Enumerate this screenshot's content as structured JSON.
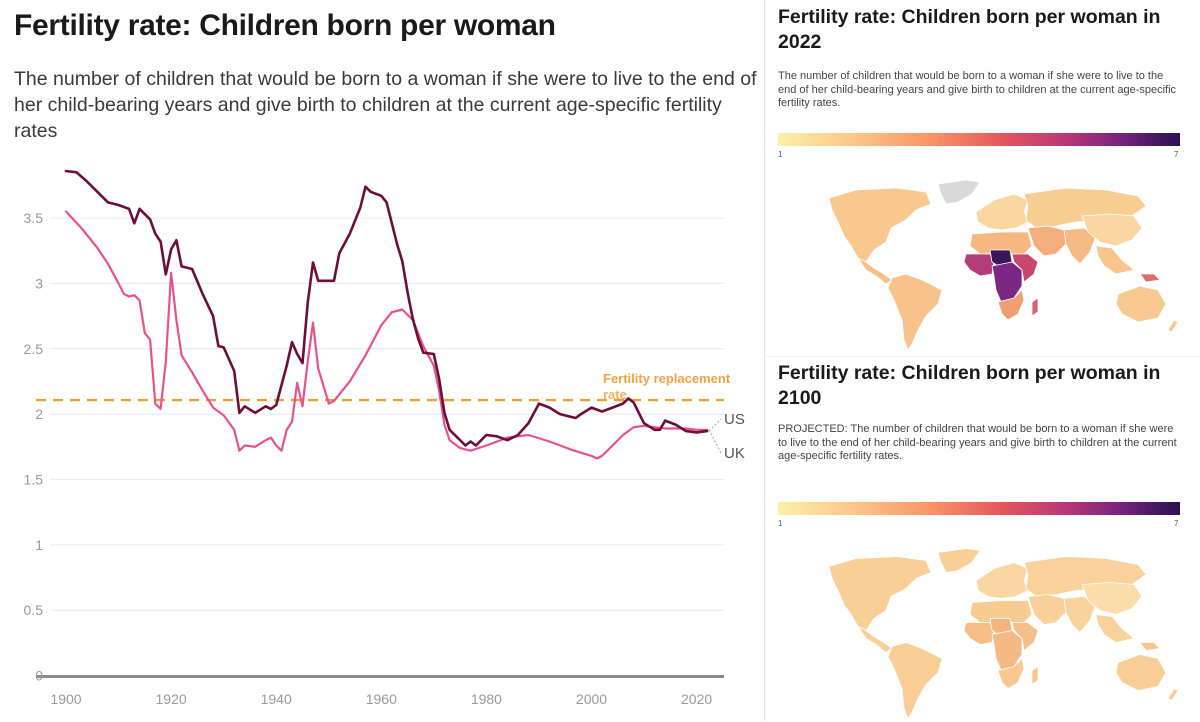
{
  "left_panel": {
    "title": "Fertility rate: Children born per woman",
    "subtitle": "The number of children that would be born to a woman if she were to live to the end of her child-bearing years and give birth to children at the current age-specific fertility rates"
  },
  "chart_data": {
    "type": "line",
    "title": "Fertility rate: Children born per woman",
    "subtitle": "The number of children that would be born to a woman if she were to live to the end of her child-bearing years and give birth to children at the current age-specific fertility rates",
    "xlabel": "",
    "ylabel": "",
    "xlim": [
      1900,
      2022
    ],
    "ylim": [
      0,
      3.9
    ],
    "x_ticks": [
      1900,
      1920,
      1940,
      1960,
      1980,
      2000,
      2020
    ],
    "y_ticks": [
      0,
      0.5,
      1,
      1.5,
      2,
      2.5,
      3,
      3.5
    ],
    "y_tick_labels": [
      "0",
      "0.5",
      "1",
      "1.5",
      "2",
      "2.5",
      "3",
      "3.5"
    ],
    "x_tick_labels": [
      "1900",
      "1920",
      "1940",
      "1960",
      "1980",
      "2000",
      "2020"
    ],
    "grid": true,
    "legend": "end-of-line labels",
    "series": [
      {
        "name": "US",
        "color": "#6b0f3a",
        "points": [
          [
            1900,
            3.86
          ],
          [
            1902,
            3.85
          ],
          [
            1904,
            3.78
          ],
          [
            1906,
            3.7
          ],
          [
            1908,
            3.62
          ],
          [
            1910,
            3.6
          ],
          [
            1912,
            3.57
          ],
          [
            1913,
            3.46
          ],
          [
            1914,
            3.57
          ],
          [
            1916,
            3.49
          ],
          [
            1917,
            3.38
          ],
          [
            1918,
            3.32
          ],
          [
            1919,
            3.07
          ],
          [
            1920,
            3.26
          ],
          [
            1921,
            3.33
          ],
          [
            1922,
            3.13
          ],
          [
            1924,
            3.11
          ],
          [
            1926,
            2.92
          ],
          [
            1928,
            2.75
          ],
          [
            1929,
            2.52
          ],
          [
            1930,
            2.51
          ],
          [
            1932,
            2.33
          ],
          [
            1933,
            2.01
          ],
          [
            1934,
            2.06
          ],
          [
            1936,
            2.01
          ],
          [
            1938,
            2.06
          ],
          [
            1939,
            2.04
          ],
          [
            1940,
            2.07
          ],
          [
            1942,
            2.37
          ],
          [
            1943,
            2.55
          ],
          [
            1944,
            2.46
          ],
          [
            1945,
            2.39
          ],
          [
            1946,
            2.85
          ],
          [
            1947,
            3.16
          ],
          [
            1948,
            3.02
          ],
          [
            1950,
            3.02
          ],
          [
            1951,
            3.02
          ],
          [
            1952,
            3.23
          ],
          [
            1954,
            3.38
          ],
          [
            1956,
            3.58
          ],
          [
            1957,
            3.74
          ],
          [
            1958,
            3.7
          ],
          [
            1960,
            3.67
          ],
          [
            1961,
            3.62
          ],
          [
            1963,
            3.3
          ],
          [
            1964,
            3.17
          ],
          [
            1965,
            2.93
          ],
          [
            1966,
            2.73
          ],
          [
            1967,
            2.58
          ],
          [
            1968,
            2.47
          ],
          [
            1970,
            2.46
          ],
          [
            1971,
            2.27
          ],
          [
            1972,
            2.01
          ],
          [
            1973,
            1.88
          ],
          [
            1975,
            1.8
          ],
          [
            1976,
            1.76
          ],
          [
            1977,
            1.79
          ],
          [
            1978,
            1.76
          ],
          [
            1980,
            1.84
          ],
          [
            1982,
            1.83
          ],
          [
            1984,
            1.8
          ],
          [
            1986,
            1.84
          ],
          [
            1988,
            1.93
          ],
          [
            1990,
            2.08
          ],
          [
            1992,
            2.05
          ],
          [
            1994,
            2.0
          ],
          [
            1996,
            1.98
          ],
          [
            1997,
            1.97
          ],
          [
            1998,
            2.0
          ],
          [
            2000,
            2.05
          ],
          [
            2002,
            2.02
          ],
          [
            2004,
            2.05
          ],
          [
            2006,
            2.08
          ],
          [
            2007,
            2.12
          ],
          [
            2008,
            2.09
          ],
          [
            2010,
            1.93
          ],
          [
            2012,
            1.88
          ],
          [
            2013,
            1.88
          ],
          [
            2014,
            1.95
          ],
          [
            2016,
            1.92
          ],
          [
            2018,
            1.87
          ],
          [
            2020,
            1.86
          ],
          [
            2022,
            1.87
          ]
        ]
      },
      {
        "name": "UK",
        "color": "#e5538e",
        "points": [
          [
            1900,
            3.55
          ],
          [
            1903,
            3.42
          ],
          [
            1906,
            3.27
          ],
          [
            1908,
            3.15
          ],
          [
            1910,
            3.0
          ],
          [
            1911,
            2.92
          ],
          [
            1912,
            2.9
          ],
          [
            1913,
            2.91
          ],
          [
            1914,
            2.87
          ],
          [
            1915,
            2.62
          ],
          [
            1916,
            2.57
          ],
          [
            1917,
            2.08
          ],
          [
            1918,
            2.04
          ],
          [
            1919,
            2.4
          ],
          [
            1920,
            3.08
          ],
          [
            1921,
            2.72
          ],
          [
            1922,
            2.45
          ],
          [
            1924,
            2.32
          ],
          [
            1926,
            2.18
          ],
          [
            1928,
            2.05
          ],
          [
            1930,
            1.99
          ],
          [
            1932,
            1.88
          ],
          [
            1933,
            1.72
          ],
          [
            1934,
            1.76
          ],
          [
            1936,
            1.75
          ],
          [
            1938,
            1.8
          ],
          [
            1939,
            1.82
          ],
          [
            1940,
            1.76
          ],
          [
            1941,
            1.72
          ],
          [
            1942,
            1.88
          ],
          [
            1943,
            1.94
          ],
          [
            1944,
            2.24
          ],
          [
            1945,
            2.06
          ],
          [
            1946,
            2.4
          ],
          [
            1947,
            2.7
          ],
          [
            1948,
            2.35
          ],
          [
            1950,
            2.08
          ],
          [
            1951,
            2.1
          ],
          [
            1954,
            2.25
          ],
          [
            1957,
            2.45
          ],
          [
            1960,
            2.68
          ],
          [
            1962,
            2.78
          ],
          [
            1964,
            2.8
          ],
          [
            1966,
            2.72
          ],
          [
            1968,
            2.52
          ],
          [
            1970,
            2.37
          ],
          [
            1971,
            2.18
          ],
          [
            1972,
            1.92
          ],
          [
            1973,
            1.8
          ],
          [
            1975,
            1.74
          ],
          [
            1977,
            1.72
          ],
          [
            1980,
            1.76
          ],
          [
            1984,
            1.82
          ],
          [
            1988,
            1.84
          ],
          [
            1992,
            1.79
          ],
          [
            1996,
            1.73
          ],
          [
            2000,
            1.68
          ],
          [
            2001,
            1.66
          ],
          [
            2002,
            1.68
          ],
          [
            2004,
            1.76
          ],
          [
            2006,
            1.84
          ],
          [
            2008,
            1.9
          ],
          [
            2010,
            1.91
          ],
          [
            2012,
            1.9
          ],
          [
            2014,
            1.89
          ],
          [
            2016,
            1.89
          ],
          [
            2018,
            1.89
          ],
          [
            2020,
            1.88
          ],
          [
            2022,
            1.88
          ]
        ]
      }
    ],
    "reference_lines": [
      {
        "label": "Fertility replacement rate",
        "value": 2.1,
        "color": "#e8a23a",
        "style": "dashed"
      }
    ],
    "end_labels": [
      "US",
      "UK"
    ]
  },
  "map_2022": {
    "title": "Fertility rate: Children born per woman in 2022",
    "description": "The number of children that would be born to a woman if she were to live to the end of her child-bearing years and give birth to children at the current age-specific fertility rates.",
    "scale_min": "1",
    "scale_max": "7",
    "regions": [
      {
        "name": "North America",
        "color": "#f8c88f"
      },
      {
        "name": "Greenland",
        "color": "#d9d9d9"
      },
      {
        "name": "Central America",
        "color": "#f7c08a"
      },
      {
        "name": "South America",
        "color": "#f7c28c"
      },
      {
        "name": "Europe",
        "color": "#fad6a0"
      },
      {
        "name": "Russia & Central Asia",
        "color": "#f8cd93"
      },
      {
        "name": "Middle East",
        "color": "#f4ad7c"
      },
      {
        "name": "North Africa",
        "color": "#f6b781"
      },
      {
        "name": "West Africa",
        "color": "#b43c78"
      },
      {
        "name": "Niger / Chad",
        "color": "#3b1559"
      },
      {
        "name": "Central Africa",
        "color": "#7b2783"
      },
      {
        "name": "East Africa",
        "color": "#c8476e"
      },
      {
        "name": "Southern Africa",
        "color": "#f0a070"
      },
      {
        "name": "Madagascar",
        "color": "#d96168"
      },
      {
        "name": "South Asia",
        "color": "#f6bb85"
      },
      {
        "name": "East Asia",
        "color": "#fad7a2"
      },
      {
        "name": "Southeast Asia",
        "color": "#f7c58d"
      },
      {
        "name": "Papua New Guinea",
        "color": "#dc6f6a"
      },
      {
        "name": "Australia",
        "color": "#f8ca91"
      },
      {
        "name": "New Zealand",
        "color": "#f8ca91"
      }
    ]
  },
  "map_2100": {
    "title": "Fertility rate: Children born per woman in 2100",
    "description": "PROJECTED: The number of children that would be born to a woman if she were to live to the end of her child-bearing years and give birth to children at the current age-specific fertility rates.",
    "scale_min": "1",
    "scale_max": "7",
    "regions": [
      {
        "name": "North America",
        "color": "#f9cf98"
      },
      {
        "name": "Greenland",
        "color": "#f9cf98"
      },
      {
        "name": "Central America",
        "color": "#f9cf98"
      },
      {
        "name": "South America",
        "color": "#f9cd96"
      },
      {
        "name": "Europe",
        "color": "#fad7a2"
      },
      {
        "name": "Russia & Central Asia",
        "color": "#f9d19a"
      },
      {
        "name": "Middle East",
        "color": "#f9d09a"
      },
      {
        "name": "North Africa",
        "color": "#f8cb93"
      },
      {
        "name": "West Africa",
        "color": "#f6bd87"
      },
      {
        "name": "Niger / Chad",
        "color": "#f4b480"
      },
      {
        "name": "Central Africa",
        "color": "#f5b985"
      },
      {
        "name": "East Africa",
        "color": "#f6bf89"
      },
      {
        "name": "Southern Africa",
        "color": "#f8c890"
      },
      {
        "name": "Madagascar",
        "color": "#f7c48c"
      },
      {
        "name": "South Asia",
        "color": "#f9d39c"
      },
      {
        "name": "East Asia",
        "color": "#fbdcaa"
      },
      {
        "name": "Southeast Asia",
        "color": "#f9d19a"
      },
      {
        "name": "Papua New Guinea",
        "color": "#f8c890"
      },
      {
        "name": "Australia",
        "color": "#f9cd96"
      },
      {
        "name": "New Zealand",
        "color": "#f9cd96"
      }
    ]
  }
}
